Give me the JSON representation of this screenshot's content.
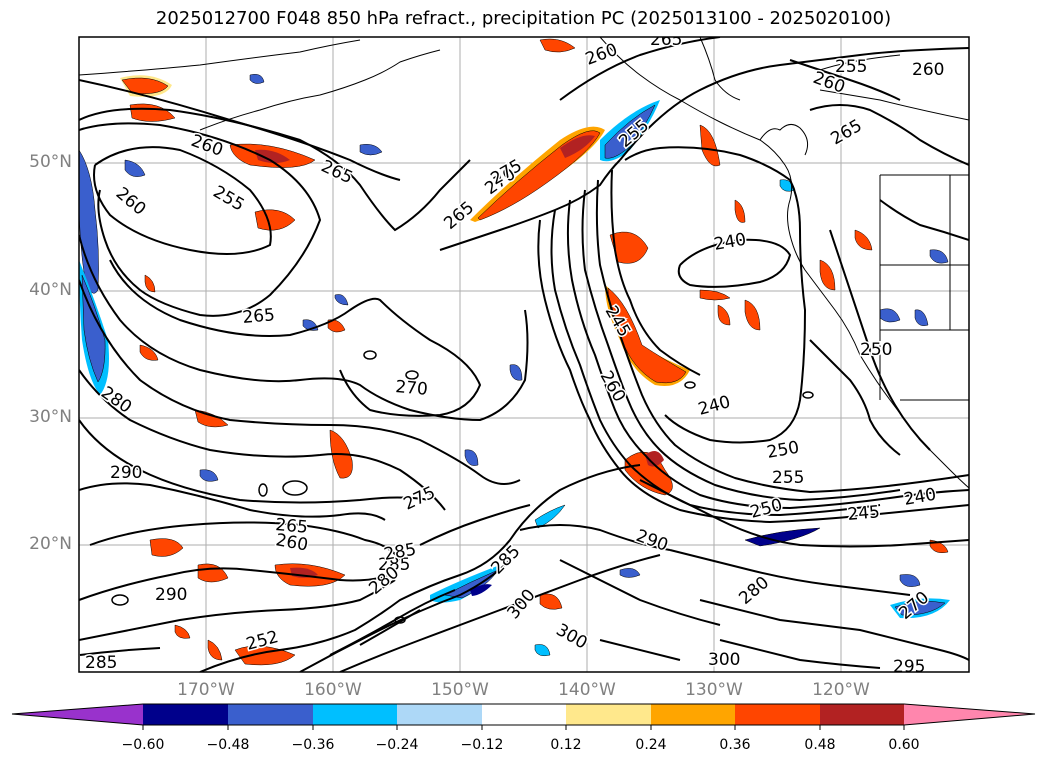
{
  "title": "2025012700 F048 850 hPa refract., precipitation PC (2025013100 - 2025020100)",
  "map": {
    "projection": "cylindrical",
    "lon_range": [
      -180,
      -110
    ],
    "lat_range": [
      10,
      60
    ],
    "gridlines": true,
    "lat_labels": [
      "50°N",
      "40°N",
      "30°N",
      "20°N"
    ],
    "lon_labels": [
      "170°W",
      "160°W",
      "150°W",
      "140°W",
      "130°W",
      "120°W"
    ],
    "contour_labels": [
      "260",
      "265",
      "255",
      "260",
      "265",
      "270",
      "275",
      "255",
      "265",
      "240",
      "245",
      "260",
      "240",
      "250",
      "255",
      "250",
      "245",
      "240",
      "280",
      "290",
      "290",
      "285",
      "285",
      "260",
      "265",
      "270",
      "275",
      "280",
      "285",
      "290",
      "300",
      "300",
      "300",
      "295",
      "280",
      "270",
      "265",
      "250",
      "255",
      "260",
      "260",
      "260",
      "265",
      "285",
      "252"
    ]
  },
  "colorbar": {
    "tick_labels": [
      "−0.60",
      "−0.48",
      "−0.36",
      "−0.24",
      "−0.12",
      "0.12",
      "0.24",
      "0.36",
      "0.48",
      "0.60"
    ],
    "colors": [
      "#9932cc",
      "#00008b",
      "#3a5fcd",
      "#00bfff",
      "#add8f7",
      "#ffffff",
      "#ffe88c",
      "#ffa500",
      "#ff4500",
      "#b22222",
      "#ff86ad"
    ],
    "extend": "both"
  }
}
